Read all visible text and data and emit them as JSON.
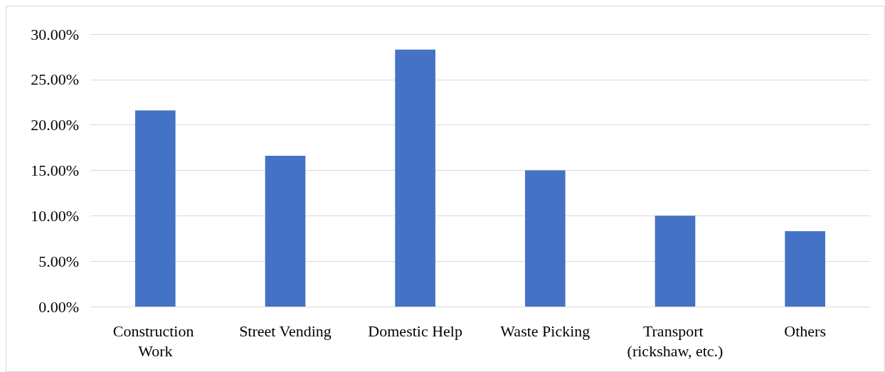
{
  "chart_data": {
    "type": "bar",
    "categories": [
      "Construction Work",
      "Street Vending",
      "Domestic Help",
      "Waste Picking",
      "Transport (rickshaw, etc.)",
      "Others"
    ],
    "values": [
      21.6,
      16.6,
      28.3,
      15.0,
      10.0,
      8.3
    ],
    "color": "#4472c4",
    "ylim": [
      0,
      30
    ],
    "yticks": [
      {
        "value": 0,
        "label": "0.00%"
      },
      {
        "value": 5,
        "label": "5.00%"
      },
      {
        "value": 10,
        "label": "10.00%"
      },
      {
        "value": 15,
        "label": "15.00%"
      },
      {
        "value": 20,
        "label": "20.00%"
      },
      {
        "value": 25,
        "label": "25.00%"
      },
      {
        "value": 30,
        "label": "30.00%"
      }
    ],
    "grid": true
  }
}
